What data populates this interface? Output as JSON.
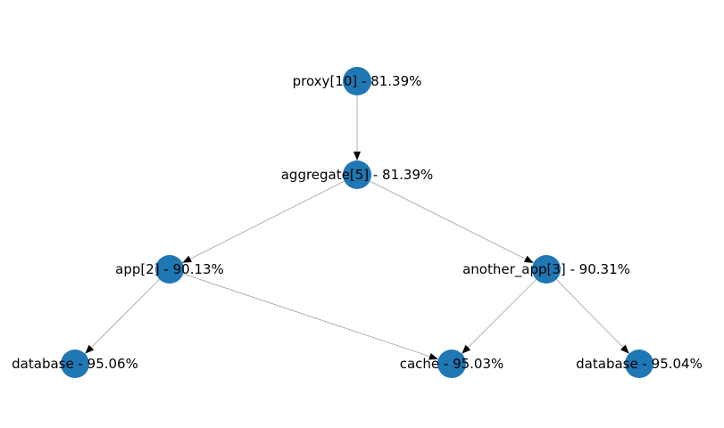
{
  "graph": {
    "node_color": "#1f77b4",
    "edge_color": "#a0a0a0",
    "arrow_color": "#000000",
    "nodes": [
      {
        "id": "proxy",
        "label": "proxy[10] - 81.39%"
      },
      {
        "id": "aggregate",
        "label": "aggregate[5] - 81.39%"
      },
      {
        "id": "app",
        "label": "app[2] - 90.13%"
      },
      {
        "id": "another_app",
        "label": "another_app[3] - 90.31%"
      },
      {
        "id": "database_1",
        "label": "database - 95.06%"
      },
      {
        "id": "cache",
        "label": "cache - 95.03%"
      },
      {
        "id": "database_2",
        "label": "database - 95.04%"
      }
    ],
    "edges": [
      {
        "from": "proxy",
        "to": "aggregate"
      },
      {
        "from": "aggregate",
        "to": "app"
      },
      {
        "from": "aggregate",
        "to": "another_app"
      },
      {
        "from": "app",
        "to": "database_1"
      },
      {
        "from": "app",
        "to": "cache"
      },
      {
        "from": "another_app",
        "to": "cache"
      },
      {
        "from": "another_app",
        "to": "database_2"
      }
    ]
  }
}
